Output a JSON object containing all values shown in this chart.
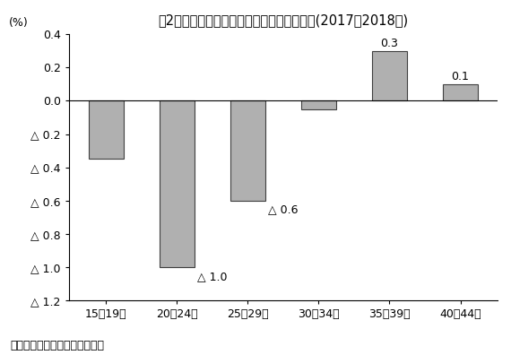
{
  "title": "囲2　出生数の前年比に対する年齢別寄与度(2017～2018年)",
  "ylabel": "(%)",
  "source": "（出所）国立衛生統計センター",
  "categories": [
    "15～19歳",
    "20～24歳",
    "25～29歳",
    "30～34歳",
    "35～39歳",
    "40～44歳"
  ],
  "values": [
    -0.35,
    -1.0,
    -0.6,
    -0.05,
    0.3,
    0.1
  ],
  "bar_color": "#b0b0b0",
  "bar_edge_color": "#404040",
  "ylim_min": -1.2,
  "ylim_max": 0.4,
  "yticks": [
    0.4,
    0.2,
    0.0,
    -0.2,
    -0.4,
    -0.6,
    -0.8,
    -1.0,
    -1.2
  ],
  "ytick_labels": [
    "0.4",
    "0.2",
    "0.0",
    "△ 0.2",
    "△ 0.4",
    "△ 0.6",
    "△ 0.8",
    "△ 1.0",
    "△ 1.2"
  ],
  "background_color": "#ffffff",
  "title_fontsize": 10.5,
  "axis_fontsize": 9,
  "tick_fontsize": 9,
  "source_fontsize": 9
}
